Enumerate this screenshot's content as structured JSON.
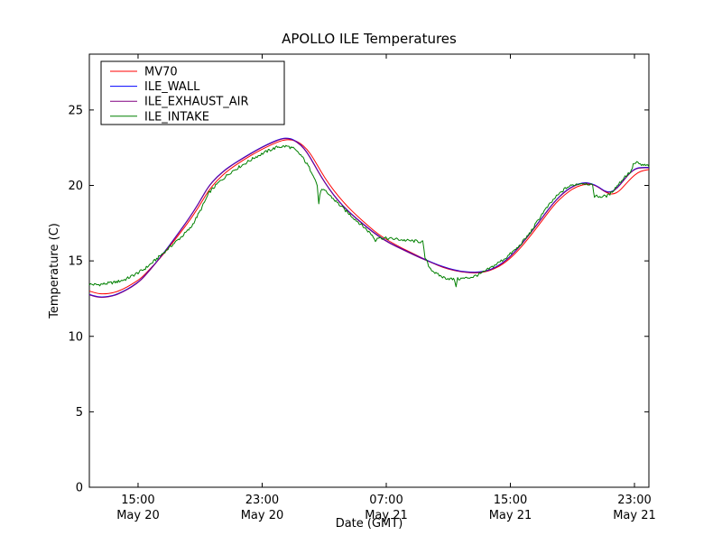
{
  "figure": {
    "background": "#ffffff",
    "spine_color": "#000000"
  },
  "chart_data": {
    "type": "line",
    "title": "APOLLO ILE Temperatures",
    "xlabel": "Date (GMT)",
    "ylabel": "Temperature (C)",
    "x_unit": "hours after May 20 12:00 GMT",
    "xlim": [
      -0.14,
      35.93
    ],
    "ylim": [
      0,
      28.7
    ],
    "yticks": [
      0,
      5,
      10,
      15,
      20,
      25
    ],
    "xticks": [
      {
        "t": 3,
        "time": "15:00",
        "date": "May 20"
      },
      {
        "t": 11,
        "time": "23:00",
        "date": "May 20"
      },
      {
        "t": 19,
        "time": "07:00",
        "date": "May 21"
      },
      {
        "t": 27,
        "time": "15:00",
        "date": "May 21"
      },
      {
        "t": 35,
        "time": "23:00",
        "date": "May 21"
      }
    ],
    "grid": false,
    "legend_position": "upper-left",
    "series": [
      {
        "name": "MV70",
        "color": "#ff0000",
        "noise": 0,
        "points": [
          [
            -0.14,
            13.0
          ],
          [
            0.3,
            12.85
          ],
          [
            0.8,
            12.8
          ],
          [
            1.4,
            12.88
          ],
          [
            2.0,
            13.1
          ],
          [
            2.6,
            13.45
          ],
          [
            3.2,
            13.85
          ],
          [
            3.8,
            14.5
          ],
          [
            4.4,
            15.15
          ],
          [
            5.0,
            15.9
          ],
          [
            5.6,
            16.7
          ],
          [
            6.2,
            17.5
          ],
          [
            6.9,
            18.55
          ],
          [
            7.5,
            19.6
          ],
          [
            8.1,
            20.35
          ],
          [
            8.8,
            21.0
          ],
          [
            9.8,
            21.7
          ],
          [
            10.8,
            22.3
          ],
          [
            11.6,
            22.7
          ],
          [
            12.3,
            23.0
          ],
          [
            12.9,
            23.05
          ],
          [
            13.4,
            22.85
          ],
          [
            13.9,
            22.4
          ],
          [
            14.3,
            21.8
          ],
          [
            14.8,
            20.9
          ],
          [
            15.3,
            20.1
          ],
          [
            15.9,
            19.3
          ],
          [
            16.5,
            18.6
          ],
          [
            17.1,
            18.0
          ],
          [
            17.8,
            17.35
          ],
          [
            18.5,
            16.75
          ],
          [
            19.2,
            16.3
          ],
          [
            20.0,
            15.85
          ],
          [
            20.8,
            15.45
          ],
          [
            21.6,
            15.05
          ],
          [
            22.3,
            14.7
          ],
          [
            23.0,
            14.45
          ],
          [
            23.7,
            14.3
          ],
          [
            24.4,
            14.2
          ],
          [
            25.0,
            14.2
          ],
          [
            25.7,
            14.35
          ],
          [
            26.5,
            14.75
          ],
          [
            27.3,
            15.45
          ],
          [
            28.1,
            16.4
          ],
          [
            29.0,
            17.6
          ],
          [
            29.8,
            18.7
          ],
          [
            30.5,
            19.4
          ],
          [
            31.2,
            19.9
          ],
          [
            31.9,
            20.1
          ],
          [
            32.4,
            20.05
          ],
          [
            32.8,
            19.8
          ],
          [
            33.2,
            19.5
          ],
          [
            33.6,
            19.4
          ],
          [
            34.0,
            19.6
          ],
          [
            34.4,
            20.05
          ],
          [
            34.8,
            20.5
          ],
          [
            35.2,
            20.85
          ],
          [
            35.6,
            21.0
          ],
          [
            35.93,
            21.05
          ]
        ]
      },
      {
        "name": "ILE_WALL",
        "color": "#0000ff",
        "noise": 0,
        "points": [
          [
            -0.14,
            12.78
          ],
          [
            0.3,
            12.63
          ],
          [
            0.8,
            12.6
          ],
          [
            1.4,
            12.7
          ],
          [
            2.0,
            12.95
          ],
          [
            2.6,
            13.3
          ],
          [
            3.2,
            13.75
          ],
          [
            3.8,
            14.45
          ],
          [
            4.4,
            15.2
          ],
          [
            5.0,
            16.0
          ],
          [
            5.6,
            16.85
          ],
          [
            6.2,
            17.7
          ],
          [
            6.9,
            18.8
          ],
          [
            7.5,
            19.9
          ],
          [
            8.1,
            20.6
          ],
          [
            8.8,
            21.2
          ],
          [
            9.8,
            21.85
          ],
          [
            10.8,
            22.45
          ],
          [
            11.6,
            22.85
          ],
          [
            12.2,
            23.1
          ],
          [
            12.6,
            23.15
          ],
          [
            13.0,
            23.05
          ],
          [
            13.5,
            22.7
          ],
          [
            13.9,
            22.2
          ],
          [
            14.3,
            21.5
          ],
          [
            14.8,
            20.6
          ],
          [
            15.3,
            19.8
          ],
          [
            15.9,
            19.0
          ],
          [
            16.5,
            18.35
          ],
          [
            17.1,
            17.8
          ],
          [
            17.8,
            17.2
          ],
          [
            18.5,
            16.65
          ],
          [
            19.2,
            16.2
          ],
          [
            20.0,
            15.8
          ],
          [
            20.8,
            15.4
          ],
          [
            21.6,
            15.05
          ],
          [
            22.3,
            14.75
          ],
          [
            23.0,
            14.5
          ],
          [
            23.7,
            14.33
          ],
          [
            24.4,
            14.25
          ],
          [
            25.0,
            14.25
          ],
          [
            25.7,
            14.4
          ],
          [
            26.5,
            14.85
          ],
          [
            27.3,
            15.6
          ],
          [
            28.1,
            16.6
          ],
          [
            29.0,
            17.8
          ],
          [
            29.8,
            18.9
          ],
          [
            30.5,
            19.6
          ],
          [
            31.1,
            20.0
          ],
          [
            31.7,
            20.2
          ],
          [
            32.2,
            20.15
          ],
          [
            32.7,
            19.9
          ],
          [
            33.1,
            19.6
          ],
          [
            33.5,
            19.55
          ],
          [
            33.9,
            19.85
          ],
          [
            34.3,
            20.35
          ],
          [
            34.7,
            20.85
          ],
          [
            35.1,
            21.15
          ],
          [
            35.5,
            21.2
          ],
          [
            35.93,
            21.2
          ]
        ]
      },
      {
        "name": "ILE_EXHAUST_AIR",
        "color": "#800080",
        "noise": 0,
        "points": [
          [
            -0.14,
            12.75
          ],
          [
            0.3,
            12.6
          ],
          [
            0.8,
            12.57
          ],
          [
            1.4,
            12.67
          ],
          [
            2.0,
            12.92
          ],
          [
            2.6,
            13.27
          ],
          [
            3.2,
            13.72
          ],
          [
            3.8,
            14.42
          ],
          [
            4.4,
            15.17
          ],
          [
            5.0,
            15.97
          ],
          [
            5.6,
            16.82
          ],
          [
            6.2,
            17.67
          ],
          [
            6.9,
            18.77
          ],
          [
            7.5,
            19.87
          ],
          [
            8.1,
            20.57
          ],
          [
            8.8,
            21.17
          ],
          [
            9.8,
            21.82
          ],
          [
            10.8,
            22.42
          ],
          [
            11.6,
            22.82
          ],
          [
            12.2,
            23.07
          ],
          [
            12.6,
            23.12
          ],
          [
            13.0,
            23.02
          ],
          [
            13.5,
            22.67
          ],
          [
            13.9,
            22.17
          ],
          [
            14.3,
            21.47
          ],
          [
            14.8,
            20.57
          ],
          [
            15.3,
            19.77
          ],
          [
            15.9,
            18.97
          ],
          [
            16.5,
            18.32
          ],
          [
            17.1,
            17.77
          ],
          [
            17.8,
            17.17
          ],
          [
            18.5,
            16.62
          ],
          [
            19.2,
            16.17
          ],
          [
            20.0,
            15.77
          ],
          [
            20.8,
            15.37
          ],
          [
            21.6,
            15.02
          ],
          [
            22.3,
            14.72
          ],
          [
            23.0,
            14.47
          ],
          [
            23.7,
            14.3
          ],
          [
            24.4,
            14.22
          ],
          [
            25.0,
            14.22
          ],
          [
            25.7,
            14.37
          ],
          [
            26.5,
            14.82
          ],
          [
            27.3,
            15.57
          ],
          [
            28.1,
            16.57
          ],
          [
            29.0,
            17.77
          ],
          [
            29.8,
            18.87
          ],
          [
            30.5,
            19.57
          ],
          [
            31.1,
            19.97
          ],
          [
            31.7,
            20.17
          ],
          [
            32.2,
            20.12
          ],
          [
            32.7,
            19.87
          ],
          [
            33.1,
            19.57
          ],
          [
            33.5,
            19.52
          ],
          [
            33.9,
            19.82
          ],
          [
            34.3,
            20.32
          ],
          [
            34.7,
            20.82
          ],
          [
            35.1,
            21.12
          ],
          [
            35.5,
            21.17
          ],
          [
            35.93,
            21.17
          ]
        ]
      },
      {
        "name": "ILE_INTAKE",
        "color": "#008000",
        "noise": 0.1,
        "points": [
          [
            -0.14,
            13.45
          ],
          [
            0.4,
            13.42
          ],
          [
            1.0,
            13.5
          ],
          [
            1.6,
            13.6
          ],
          [
            2.2,
            13.78
          ],
          [
            2.8,
            14.1
          ],
          [
            3.4,
            14.45
          ],
          [
            4.0,
            14.95
          ],
          [
            4.6,
            15.5
          ],
          [
            5.2,
            16.05
          ],
          [
            5.8,
            16.6
          ],
          [
            6.4,
            17.2
          ],
          [
            7.0,
            18.3
          ],
          [
            7.6,
            19.55
          ],
          [
            8.2,
            20.2
          ],
          [
            9.0,
            20.9
          ],
          [
            9.8,
            21.4
          ],
          [
            10.6,
            21.9
          ],
          [
            11.4,
            22.3
          ],
          [
            12.0,
            22.55
          ],
          [
            12.6,
            22.6
          ],
          [
            13.0,
            22.45
          ],
          [
            13.5,
            22.0
          ],
          [
            13.9,
            21.4
          ],
          [
            14.3,
            20.7
          ],
          [
            14.55,
            20.0
          ],
          [
            14.65,
            18.8
          ],
          [
            14.78,
            19.7
          ],
          [
            15.1,
            19.6
          ],
          [
            15.7,
            19.0
          ],
          [
            16.3,
            18.4
          ],
          [
            17.0,
            17.75
          ],
          [
            17.6,
            17.2
          ],
          [
            18.1,
            16.7
          ],
          [
            18.3,
            16.35
          ],
          [
            18.42,
            16.55
          ],
          [
            18.9,
            16.5
          ],
          [
            19.6,
            16.45
          ],
          [
            20.3,
            16.35
          ],
          [
            21.0,
            16.3
          ],
          [
            21.35,
            16.25
          ],
          [
            21.5,
            15.2
          ],
          [
            21.8,
            14.55
          ],
          [
            22.2,
            14.15
          ],
          [
            22.7,
            13.9
          ],
          [
            23.2,
            13.8
          ],
          [
            23.4,
            13.75
          ],
          [
            23.5,
            13.35
          ],
          [
            23.6,
            13.8
          ],
          [
            24.1,
            13.85
          ],
          [
            24.6,
            13.95
          ],
          [
            25.2,
            14.2
          ],
          [
            25.9,
            14.65
          ],
          [
            26.7,
            15.2
          ],
          [
            27.5,
            15.9
          ],
          [
            28.3,
            16.9
          ],
          [
            29.1,
            18.2
          ],
          [
            29.9,
            19.2
          ],
          [
            30.6,
            19.85
          ],
          [
            31.1,
            20.05
          ],
          [
            31.6,
            20.15
          ],
          [
            32.1,
            20.1
          ],
          [
            32.3,
            19.95
          ],
          [
            32.42,
            19.3
          ],
          [
            32.9,
            19.25
          ],
          [
            33.35,
            19.35
          ],
          [
            33.9,
            20.0
          ],
          [
            34.4,
            20.6
          ],
          [
            34.8,
            20.95
          ],
          [
            34.92,
            21.4
          ],
          [
            35.15,
            21.5
          ],
          [
            35.45,
            21.35
          ],
          [
            35.93,
            21.3
          ]
        ]
      }
    ]
  }
}
